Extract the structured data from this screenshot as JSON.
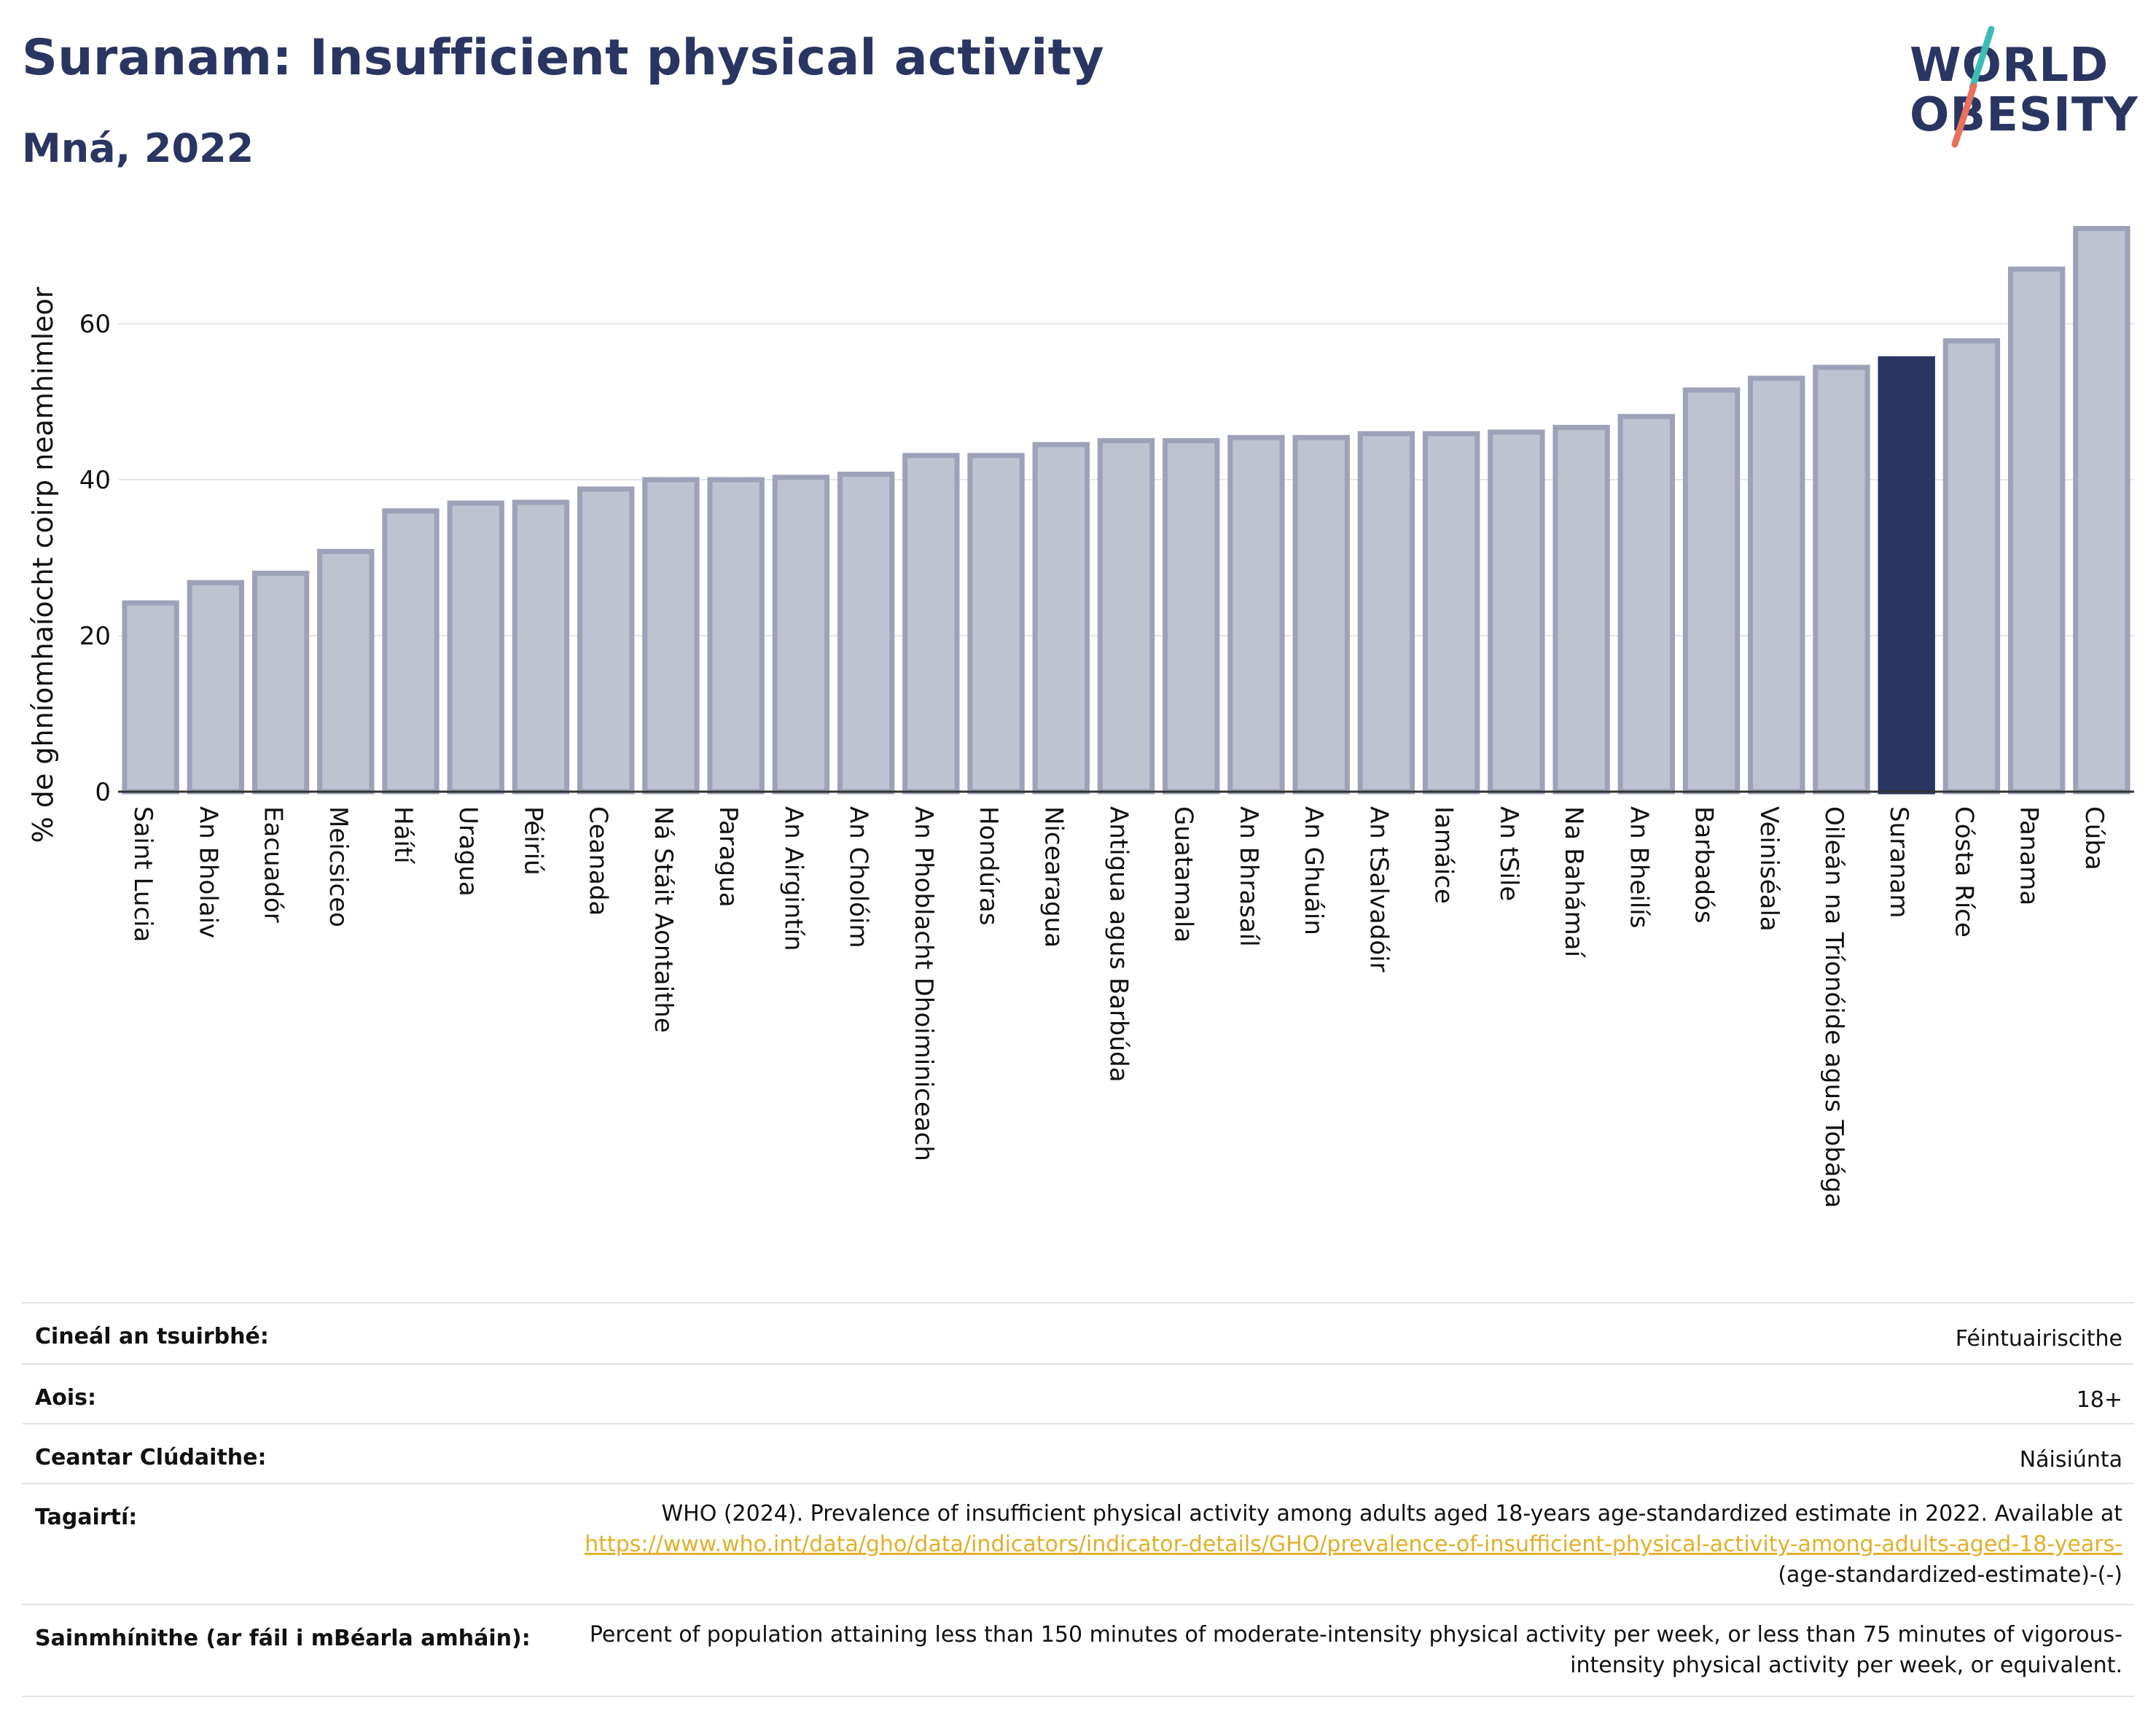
{
  "header": {
    "title": "Suranam: Insufficient physical activity",
    "subtitle": "Mná, 2022"
  },
  "logo": {
    "line1": "WORLD",
    "line2": "OBESITY",
    "slash_colors": [
      "#3dbdb4",
      "#e8705f"
    ]
  },
  "colors": {
    "bar_default": "#bfc2cf",
    "bar_default_border": "#9da2b8",
    "bar_highlight": "#2b3561",
    "text_dark": "#2b3561",
    "link": "#e0b02a"
  },
  "chart_data": {
    "type": "bar",
    "ylabel": "% de ghníomhaíocht coirp neamhimleor",
    "ylim": [
      0,
      75
    ],
    "yticks": [
      0,
      20,
      40,
      60
    ],
    "grid": true,
    "highlight": "Suranam",
    "categories": [
      "Saint Lucia",
      "An Bholaiv",
      "Eacuadór",
      "Meicsiceo",
      "Háítí",
      "Uragua",
      "Péiriú",
      "Ceanada",
      "Ná Stáit Aontaithe",
      "Paragua",
      "An Airgintín",
      "An Cholóim",
      "An Phoblacht Dhoiminiceach",
      "Hondúras",
      "Nicearagua",
      "Antigua agus Barbúda",
      "Guatamala",
      "An Bhrasaíl",
      "An Ghuáin",
      "An tSalvadóir",
      "Iamáice",
      "An tSile",
      "Na Bahámaí",
      "An Bheilís",
      "Barbadós",
      "Veiniséala",
      "Oileán na Tríonóide agus Tobága",
      "Suranam",
      "Cósta Ríce",
      "Panama",
      "Cúba"
    ],
    "values": [
      24.2,
      26.8,
      28.0,
      30.8,
      36.0,
      37.0,
      37.1,
      38.8,
      40.0,
      40.0,
      40.3,
      40.7,
      43.1,
      43.1,
      44.5,
      45.0,
      45.0,
      45.4,
      45.4,
      45.9,
      45.9,
      46.1,
      46.7,
      48.1,
      51.5,
      53.0,
      54.4,
      55.5,
      57.8,
      67.0,
      72.2
    ]
  },
  "info": {
    "survey_type": {
      "label": "Cineál an tsuirbhé:",
      "value": "Féintuairiscithe"
    },
    "age": {
      "label": "Aois:",
      "value": "18+"
    },
    "area": {
      "label": "Ceantar Clúdaithe:",
      "value": "Náisiúnta"
    },
    "references": {
      "label": "Tagairtí:",
      "text": "WHO (2024). Prevalence of insufficient physical activity among adults aged 18-years age-standardized estimate in 2022. Available at",
      "link": "https://www.who.int/data/gho/data/indicators/indicator-details/GHO/prevalence-of-insufficient-physical-activity-among-adults-aged-18-years-",
      "suffix": "(age-standardized-estimate)-(-)"
    },
    "definitions": {
      "label": "Sainmhínithe (ar fáil i mBéarla amháin):",
      "value": "Percent of population attaining less than 150 minutes of moderate-intensity physical activity per week, or less than 75 minutes of vigorous-intensity physical activity per week, or equivalent."
    }
  }
}
